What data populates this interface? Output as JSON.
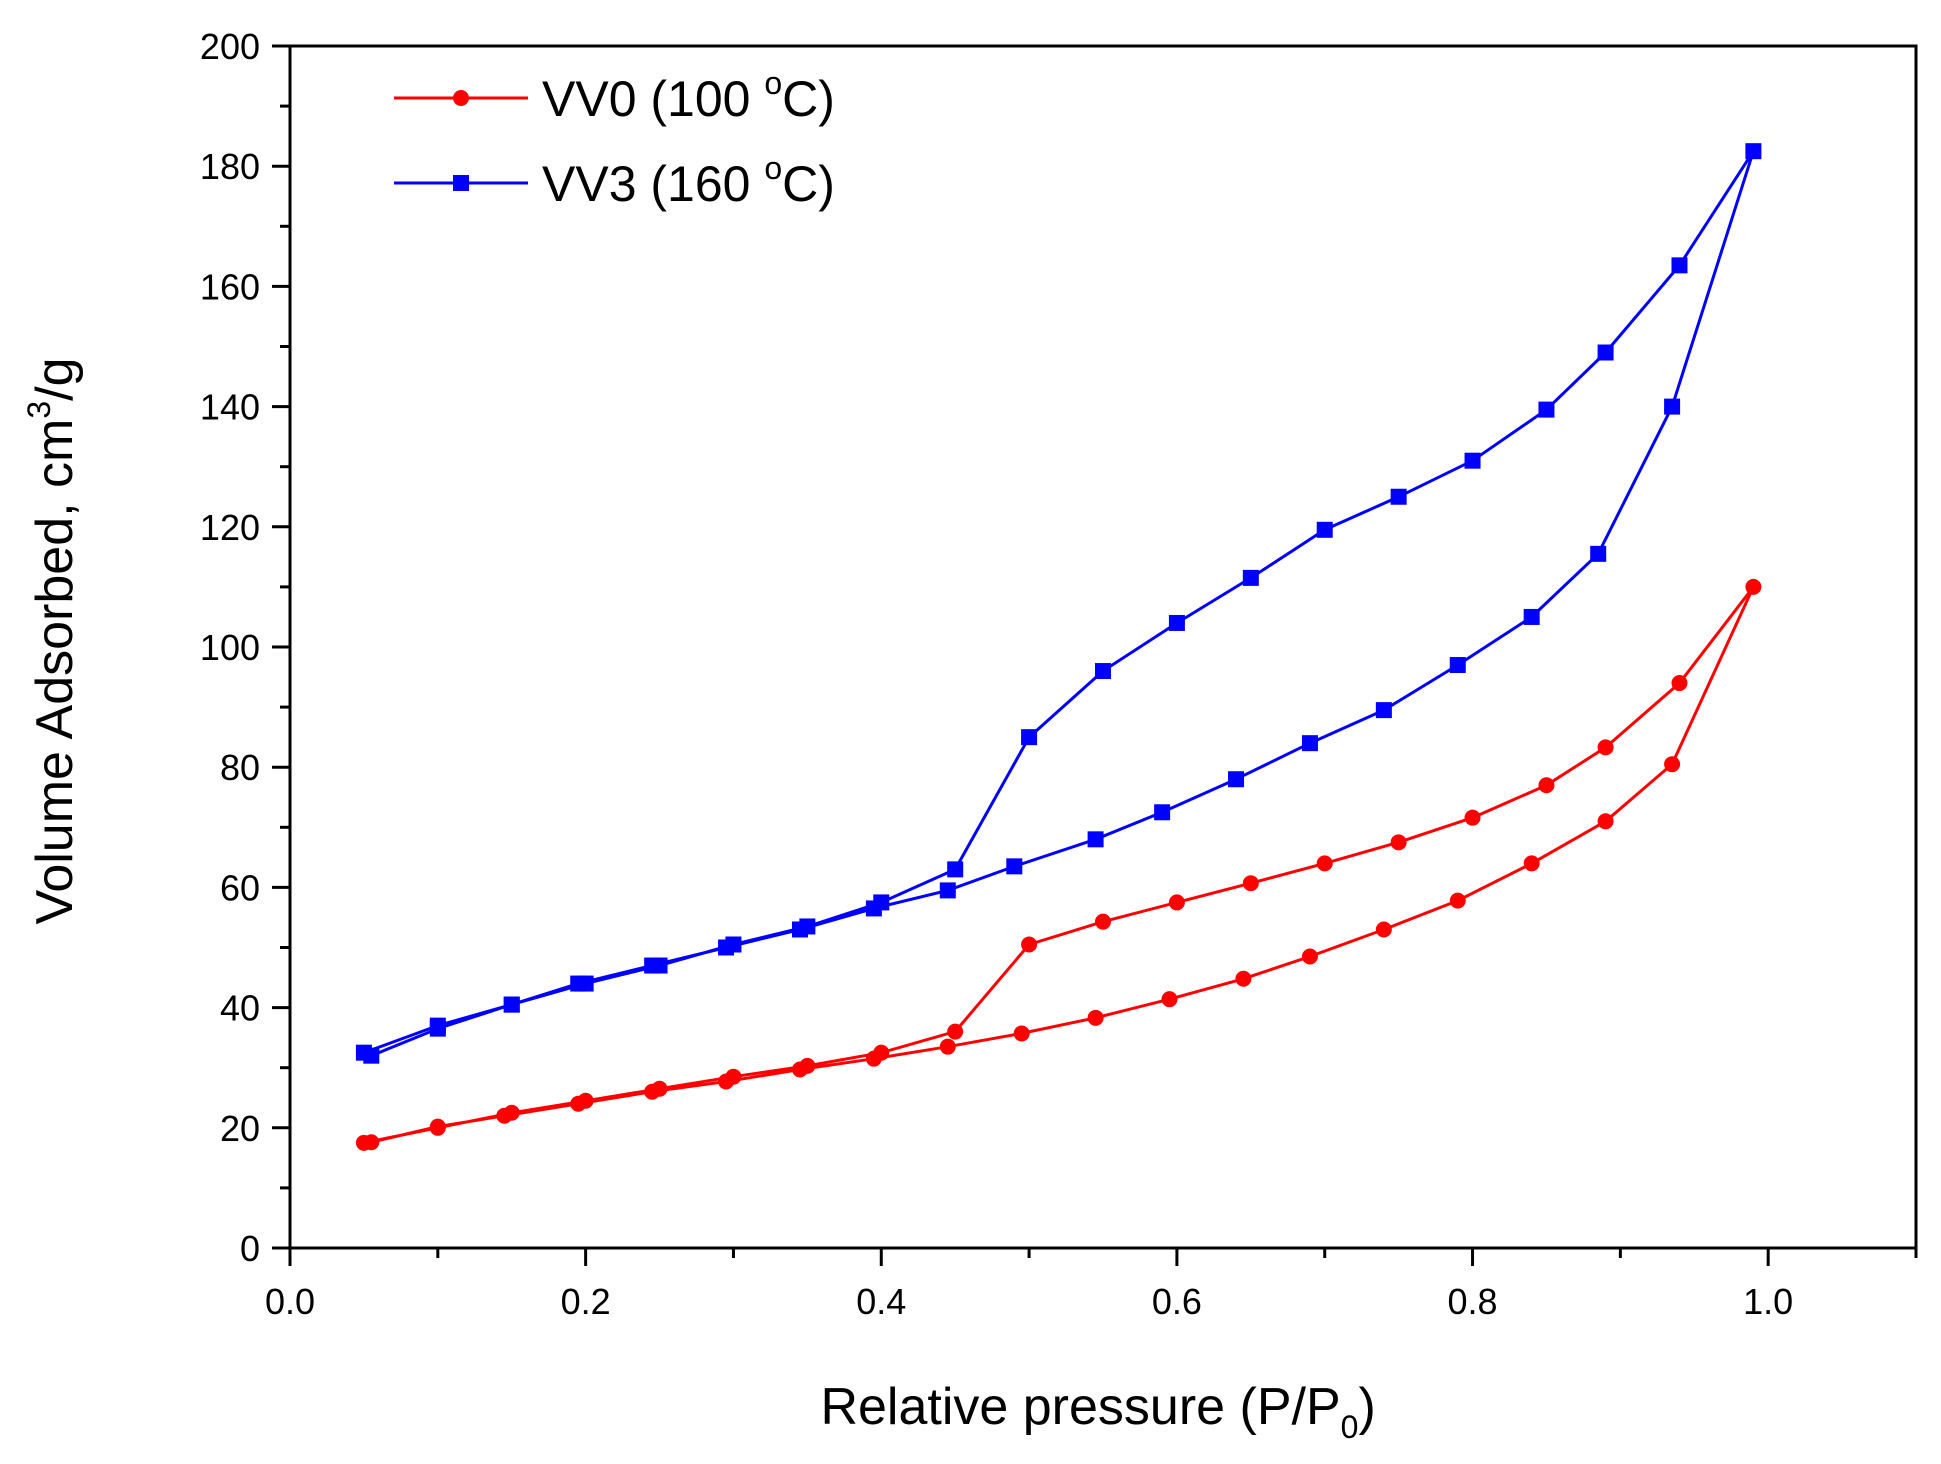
{
  "chart_data": {
    "type": "line",
    "title": "",
    "xlabel": {
      "main": "Relative pressure (P/P",
      "sub": "0",
      "tail": ")"
    },
    "ylabel": {
      "main": "Volume Adsorbed, cm",
      "sup": "3",
      "tail": "/g"
    },
    "xlim": [
      0.0,
      1.1
    ],
    "ylim": [
      0,
      200
    ],
    "xticks": [
      {
        "value": 0.0,
        "label": "0.0"
      },
      {
        "value": 0.2,
        "label": "0.2"
      },
      {
        "value": 0.4,
        "label": "0.4"
      },
      {
        "value": 0.6,
        "label": "0.6"
      },
      {
        "value": 0.8,
        "label": "0.8"
      },
      {
        "value": 1.0,
        "label": "1.0"
      }
    ],
    "yticks": [
      {
        "value": 0,
        "label": "0"
      },
      {
        "value": 20,
        "label": "20"
      },
      {
        "value": 40,
        "label": "40"
      },
      {
        "value": 60,
        "label": "60"
      },
      {
        "value": 80,
        "label": "80"
      },
      {
        "value": 100,
        "label": "100"
      },
      {
        "value": 120,
        "label": "120"
      },
      {
        "value": 140,
        "label": "140"
      },
      {
        "value": 160,
        "label": "160"
      },
      {
        "value": 180,
        "label": "180"
      },
      {
        "value": 200,
        "label": "200"
      }
    ],
    "grid": false,
    "legend_position": "top-left",
    "series": [
      {
        "name": "VV0 (100 oC)",
        "label_main": "VV0 (100 ",
        "label_sup": "o",
        "label_tail": "C)",
        "color": "#ff0000",
        "marker": "circle",
        "x": [
          0.05,
          0.1,
          0.15,
          0.2,
          0.25,
          0.3,
          0.35,
          0.4,
          0.45,
          0.5,
          0.55,
          0.6,
          0.65,
          0.7,
          0.75,
          0.8,
          0.85,
          0.89,
          0.94,
          0.99,
          0.935,
          0.89,
          0.84,
          0.79,
          0.74,
          0.69,
          0.645,
          0.595,
          0.545,
          0.495,
          0.445,
          0.395,
          0.345,
          0.295,
          0.245,
          0.195,
          0.145,
          0.1,
          0.055
        ],
        "y": [
          17.5,
          20.0,
          22.5,
          24.5,
          26.5,
          28.5,
          30.3,
          32.5,
          36.0,
          50.5,
          54.3,
          57.5,
          60.7,
          64.0,
          67.5,
          71.6,
          77.0,
          83.3,
          94.0,
          110.0,
          80.5,
          71.0,
          64.0,
          57.8,
          53.0,
          48.5,
          44.8,
          41.4,
          38.3,
          35.7,
          33.5,
          31.5,
          29.7,
          27.7,
          26.0,
          24.0,
          22.0,
          20.2,
          17.6
        ]
      },
      {
        "name": "VV3 (160 oC)",
        "label_main": "VV3 (160 ",
        "label_sup": "o",
        "label_tail": "C)",
        "color": "#0000ff",
        "marker": "square",
        "x": [
          0.05,
          0.1,
          0.15,
          0.2,
          0.25,
          0.3,
          0.35,
          0.4,
          0.45,
          0.5,
          0.55,
          0.6,
          0.65,
          0.7,
          0.75,
          0.8,
          0.85,
          0.89,
          0.94,
          0.99,
          0.935,
          0.885,
          0.84,
          0.79,
          0.74,
          0.69,
          0.64,
          0.59,
          0.545,
          0.49,
          0.445,
          0.395,
          0.345,
          0.295,
          0.245,
          0.195,
          0.15,
          0.1,
          0.055
        ],
        "y": [
          32.5,
          37.0,
          40.5,
          44.0,
          47.0,
          50.5,
          53.5,
          57.5,
          63.0,
          85.0,
          96.0,
          104.0,
          111.5,
          119.5,
          125.0,
          131.0,
          139.5,
          149.0,
          163.5,
          182.5,
          140.0,
          115.5,
          105.0,
          97.0,
          89.5,
          84.0,
          78.0,
          72.5,
          68.0,
          63.5,
          59.5,
          56.5,
          53.0,
          50.0,
          47.0,
          44.0,
          40.5,
          36.5,
          32.0
        ]
      }
    ]
  }
}
